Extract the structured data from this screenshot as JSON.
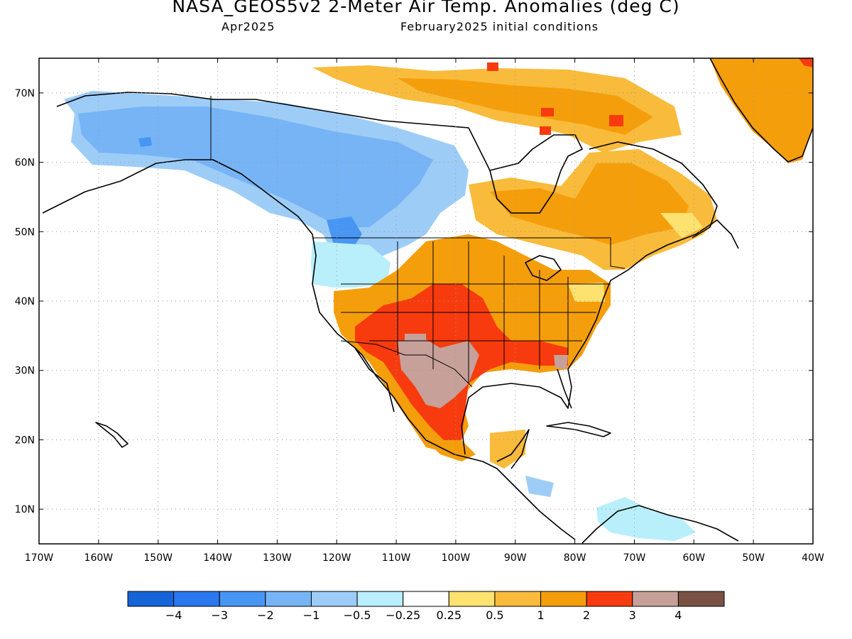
{
  "header": {
    "title": "NASA_GEOS5v2 2-Meter Air Temp. Anomalies (deg C)",
    "lead_month": "Apr2025",
    "init_conditions": "February2025 initial conditions"
  },
  "map": {
    "lat_range": [
      5,
      75
    ],
    "lon_range": [
      -170,
      -40
    ],
    "lat_ticks": [
      {
        "value": 10,
        "label": "10N"
      },
      {
        "value": 20,
        "label": "20N"
      },
      {
        "value": 30,
        "label": "30N"
      },
      {
        "value": 40,
        "label": "40N"
      },
      {
        "value": 50,
        "label": "50N"
      },
      {
        "value": 60,
        "label": "60N"
      },
      {
        "value": 70,
        "label": "70N"
      }
    ],
    "lon_ticks": [
      {
        "value": -170,
        "label": "170W"
      },
      {
        "value": -160,
        "label": "160W"
      },
      {
        "value": -150,
        "label": "150W"
      },
      {
        "value": -140,
        "label": "140W"
      },
      {
        "value": -130,
        "label": "130W"
      },
      {
        "value": -120,
        "label": "120W"
      },
      {
        "value": -110,
        "label": "110W"
      },
      {
        "value": -100,
        "label": "100W"
      },
      {
        "value": -90,
        "label": "90W"
      },
      {
        "value": -80,
        "label": "80W"
      },
      {
        "value": -70,
        "label": "70W"
      },
      {
        "value": -60,
        "label": "60W"
      },
      {
        "value": -50,
        "label": "50W"
      },
      {
        "value": -40,
        "label": "40W"
      }
    ],
    "grid": true,
    "projection": "cylindrical equidistant",
    "regions": "North America, Central America, Caribbean, northern South America, Greenland"
  },
  "colorbar": {
    "colors": [
      "#1565d8",
      "#2a78ef",
      "#4796f4",
      "#76b4f5",
      "#9dcdf7",
      "#b9eefb",
      "#ffffff",
      "#fde270",
      "#f9bb3b",
      "#f59e0b",
      "#f73b0e",
      "#c7a09a",
      "#7a5243"
    ],
    "labels": [
      "-4",
      "-3",
      "-2",
      "-1",
      "-0.5",
      "-0.25",
      "0.25",
      "0.5",
      "1",
      "2",
      "3",
      "4"
    ]
  }
}
